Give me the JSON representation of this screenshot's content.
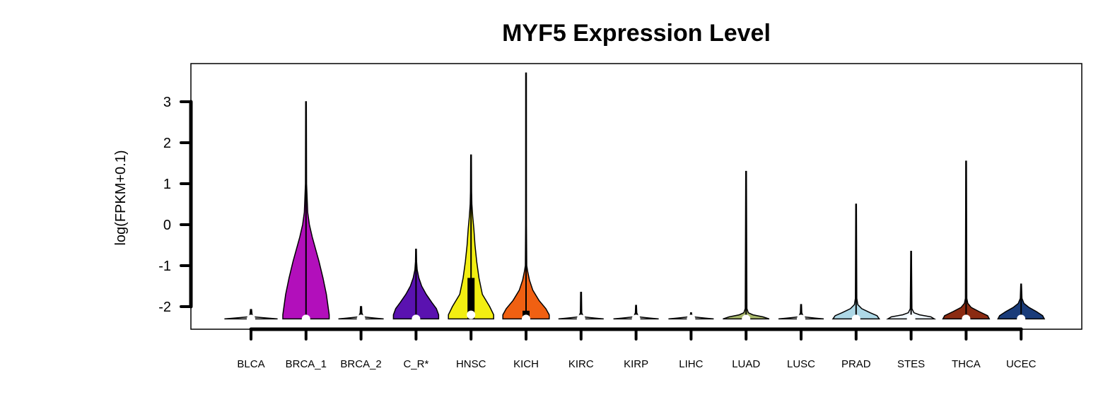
{
  "chart_data": {
    "type": "violin",
    "title": "MYF5 Expression Level",
    "xlabel": "",
    "ylabel": "log(FPKM+0.1)",
    "ylim": [
      -2.3,
      3.8
    ],
    "yticks": [
      -2,
      -1,
      0,
      1,
      2,
      3
    ],
    "ytick_labels": [
      "-2",
      "-1",
      "0",
      "1",
      "2",
      "3"
    ],
    "grid": false,
    "legend": "none",
    "categories": [
      "BLCA",
      "BRCA_1",
      "BRCA_2",
      "C_R*",
      "HNSC",
      "KICH",
      "KIRC",
      "KIRP",
      "LIHC",
      "LUAD",
      "LUSC",
      "PRAD",
      "STES",
      "THCA",
      "UCEC"
    ],
    "series": [
      {
        "category": "BLCA",
        "min": -2.3,
        "max": -2.07,
        "median": -2.3,
        "q1": -2.3,
        "q3": -2.3,
        "color": "#e9e9e9",
        "shape": [
          [
            -2.3,
            0.47
          ],
          [
            -2.28,
            0.3
          ],
          [
            -2.25,
            0.05
          ],
          [
            -2.2,
            0.02
          ],
          [
            -2.07,
            0.01
          ]
        ]
      },
      {
        "category": "BRCA_1",
        "min": -2.3,
        "max": 3.0,
        "median": -2.3,
        "q1": -2.3,
        "q3": -2.3,
        "color": "#b20fbb",
        "shape": [
          [
            -2.3,
            0.41
          ],
          [
            -2.2,
            0.41
          ],
          [
            -2.0,
            0.39
          ],
          [
            -1.7,
            0.36
          ],
          [
            -1.3,
            0.3
          ],
          [
            -0.9,
            0.23
          ],
          [
            -0.6,
            0.17
          ],
          [
            -0.3,
            0.11
          ],
          [
            0.0,
            0.06
          ],
          [
            0.3,
            0.03
          ],
          [
            1.0,
            0.01
          ],
          [
            3.0,
            0.006
          ]
        ]
      },
      {
        "category": "BRCA_2",
        "min": -2.3,
        "max": -2.0,
        "median": -2.3,
        "q1": -2.3,
        "q3": -2.3,
        "color": "#f0f0f0",
        "shape": [
          [
            -2.3,
            0.4
          ],
          [
            -2.28,
            0.25
          ],
          [
            -2.25,
            0.04
          ],
          [
            -2.15,
            0.015
          ],
          [
            -2.0,
            0.01
          ]
        ]
      },
      {
        "category": "C_R*",
        "min": -2.3,
        "max": -0.6,
        "median": -2.3,
        "q1": -2.3,
        "q3": -2.3,
        "color": "#5a12b0",
        "shape": [
          [
            -2.3,
            0.4
          ],
          [
            -2.2,
            0.4
          ],
          [
            -2.05,
            0.36
          ],
          [
            -1.9,
            0.28
          ],
          [
            -1.7,
            0.18
          ],
          [
            -1.5,
            0.1
          ],
          [
            -1.3,
            0.05
          ],
          [
            -1.1,
            0.02
          ],
          [
            -0.9,
            0.01
          ],
          [
            -0.6,
            0.006
          ]
        ]
      },
      {
        "category": "HNSC",
        "min": -2.3,
        "max": 1.7,
        "median": -2.2,
        "q1": -2.3,
        "q3": -1.3,
        "color": "#f2ee12",
        "shape": [
          [
            -2.3,
            0.4
          ],
          [
            -2.2,
            0.4
          ],
          [
            -2.0,
            0.33
          ],
          [
            -1.7,
            0.2
          ],
          [
            -1.3,
            0.14
          ],
          [
            -0.9,
            0.1
          ],
          [
            -0.5,
            0.07
          ],
          [
            -0.1,
            0.05
          ],
          [
            0.2,
            0.03
          ],
          [
            0.5,
            0.015
          ],
          [
            0.8,
            0.01
          ],
          [
            1.7,
            0.006
          ]
        ]
      },
      {
        "category": "KICH",
        "min": -2.3,
        "max": 3.7,
        "median": -2.3,
        "q1": -2.3,
        "q3": -2.1,
        "color": "#f06012",
        "shape": [
          [
            -2.3,
            0.41
          ],
          [
            -2.2,
            0.41
          ],
          [
            -2.05,
            0.35
          ],
          [
            -1.85,
            0.23
          ],
          [
            -1.6,
            0.12
          ],
          [
            -1.35,
            0.06
          ],
          [
            -1.15,
            0.03
          ],
          [
            -1.0,
            0.012
          ],
          [
            0.0,
            0.008
          ],
          [
            3.7,
            0.006
          ]
        ]
      },
      {
        "category": "KIRC",
        "min": -2.3,
        "max": -1.65,
        "median": -2.3,
        "q1": -2.3,
        "q3": -2.3,
        "color": "#f0f0f0",
        "shape": [
          [
            -2.3,
            0.4
          ],
          [
            -2.28,
            0.25
          ],
          [
            -2.25,
            0.04
          ],
          [
            -2.15,
            0.012
          ],
          [
            -1.65,
            0.008
          ]
        ]
      },
      {
        "category": "KIRP",
        "min": -2.3,
        "max": -1.97,
        "median": -2.3,
        "q1": -2.3,
        "q3": -2.3,
        "color": "#f0f0f0",
        "shape": [
          [
            -2.3,
            0.4
          ],
          [
            -2.28,
            0.25
          ],
          [
            -2.25,
            0.04
          ],
          [
            -2.15,
            0.012
          ],
          [
            -1.97,
            0.008
          ]
        ]
      },
      {
        "category": "LIHC",
        "min": -2.3,
        "max": -2.15,
        "median": -2.3,
        "q1": -2.3,
        "q3": -2.3,
        "color": "#f0f0f0",
        "shape": [
          [
            -2.3,
            0.4
          ],
          [
            -2.28,
            0.25
          ],
          [
            -2.25,
            0.04
          ],
          [
            -2.2,
            0.012
          ],
          [
            -2.15,
            0.008
          ]
        ]
      },
      {
        "category": "LUAD",
        "min": -2.3,
        "max": 1.3,
        "median": -2.3,
        "q1": -2.3,
        "q3": -2.3,
        "color": "#a8b86b",
        "shape": [
          [
            -2.3,
            0.41
          ],
          [
            -2.25,
            0.3
          ],
          [
            -2.2,
            0.12
          ],
          [
            -2.15,
            0.04
          ],
          [
            -2.05,
            0.015
          ],
          [
            1.3,
            0.006
          ]
        ]
      },
      {
        "category": "LUSC",
        "min": -2.3,
        "max": -1.95,
        "median": -2.3,
        "q1": -2.3,
        "q3": -2.3,
        "color": "#f0f0f0",
        "shape": [
          [
            -2.3,
            0.4
          ],
          [
            -2.28,
            0.25
          ],
          [
            -2.25,
            0.04
          ],
          [
            -2.15,
            0.012
          ],
          [
            -1.95,
            0.008
          ]
        ]
      },
      {
        "category": "PRAD",
        "min": -2.3,
        "max": 0.5,
        "median": -2.3,
        "q1": -2.3,
        "q3": -2.3,
        "color": "#add8e6",
        "shape": [
          [
            -2.3,
            0.41
          ],
          [
            -2.22,
            0.37
          ],
          [
            -2.15,
            0.25
          ],
          [
            -2.05,
            0.1
          ],
          [
            -1.95,
            0.03
          ],
          [
            -1.8,
            0.012
          ],
          [
            0.5,
            0.006
          ]
        ]
      },
      {
        "category": "STES",
        "min": -2.3,
        "max": -0.65,
        "median": -2.3,
        "q1": -2.3,
        "q3": -2.3,
        "color": "#f0f8ff",
        "shape": [
          [
            -2.3,
            0.41
          ],
          [
            -2.25,
            0.35
          ],
          [
            -2.2,
            0.15
          ],
          [
            -2.15,
            0.05
          ],
          [
            -2.05,
            0.015
          ],
          [
            -0.65,
            0.006
          ]
        ]
      },
      {
        "category": "THCA",
        "min": -2.3,
        "max": 1.55,
        "median": -2.3,
        "q1": -2.3,
        "q3": -2.3,
        "color": "#8b2b12",
        "shape": [
          [
            -2.3,
            0.41
          ],
          [
            -2.22,
            0.38
          ],
          [
            -2.12,
            0.23
          ],
          [
            -2.02,
            0.09
          ],
          [
            -1.92,
            0.03
          ],
          [
            -1.8,
            0.012
          ],
          [
            1.55,
            0.006
          ]
        ]
      },
      {
        "category": "UCEC",
        "min": -2.3,
        "max": -1.45,
        "median": -2.3,
        "q1": -2.3,
        "q3": -2.3,
        "color": "#1a3c7a",
        "shape": [
          [
            -2.3,
            0.41
          ],
          [
            -2.22,
            0.38
          ],
          [
            -2.12,
            0.27
          ],
          [
            -2.02,
            0.14
          ],
          [
            -1.92,
            0.05
          ],
          [
            -1.8,
            0.015
          ],
          [
            -1.45,
            0.006
          ]
        ]
      }
    ]
  }
}
